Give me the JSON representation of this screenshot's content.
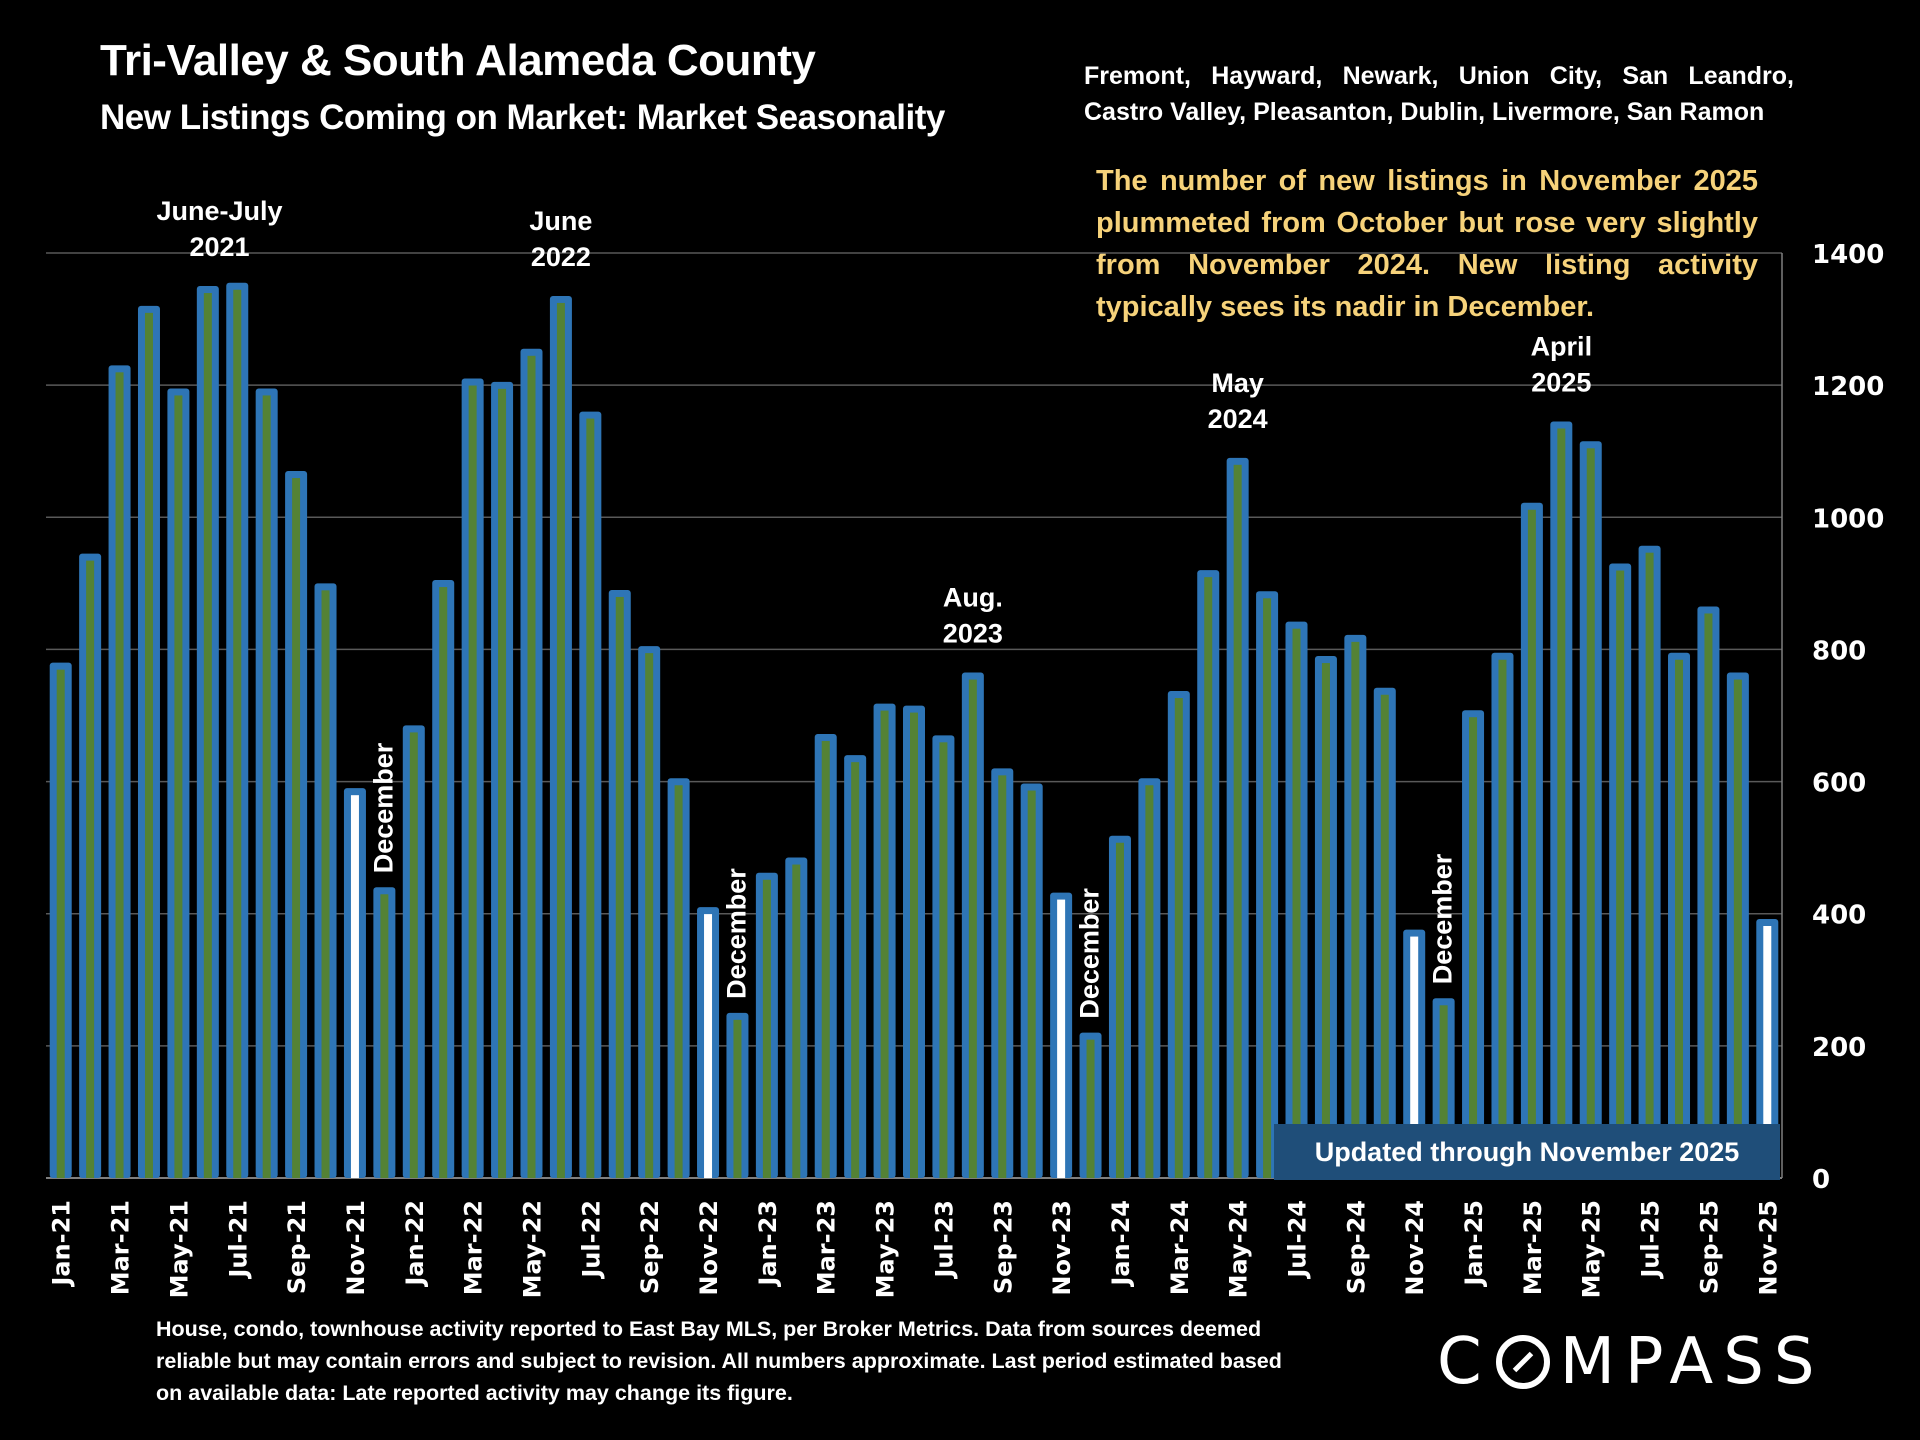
{
  "header": {
    "title": "Tri-Valley & South Alameda County",
    "subtitle": "New Listings Coming on Market: Market Seasonality",
    "cities": "Fremont, Hayward, Newark, Union City, San Leandro, Castro Valley, Pleasanton, Dublin, Livermore, San Ramon"
  },
  "commentary": "The number of new listings in November 2025 plummeted from October but rose very slightly from November 2024.  New listing activity typically sees its nadir in December.",
  "updated_badge": "Updated through November 2025",
  "footer": "House, condo, townhouse activity reported to East Bay MLS, per Broker Metrics. Data from sources deemed reliable but may contain errors and subject to revision. All numbers approximate. Last period estimated based on available data: Late reported activity may change its figure.",
  "logo": {
    "text_c": "C",
    "text_rest": "MPASS"
  },
  "colors": {
    "bar_outline": "#2e75b6",
    "bar_fill": "#548235",
    "november_fill": "#ffffff",
    "gridline": "#595959",
    "commentary": "#f6d27a",
    "badge": "#1f4e79"
  },
  "chart_data": {
    "type": "bar",
    "title": "New Listings Coming on Market: Market Seasonality",
    "xlabel": "",
    "ylabel": "",
    "ylim": [
      0,
      1400
    ],
    "yticks": [
      0,
      200,
      400,
      600,
      800,
      1000,
      1200,
      1400
    ],
    "y_axis_side": "right",
    "grid": true,
    "categories": [
      "Jan-21",
      "Feb-21",
      "Mar-21",
      "Apr-21",
      "May-21",
      "Jun-21",
      "Jul-21",
      "Aug-21",
      "Sep-21",
      "Oct-21",
      "Nov-21",
      "Dec-21",
      "Jan-22",
      "Feb-22",
      "Mar-22",
      "Apr-22",
      "May-22",
      "Jun-22",
      "Jul-22",
      "Aug-22",
      "Sep-22",
      "Oct-22",
      "Nov-22",
      "Dec-22",
      "Jan-23",
      "Feb-23",
      "Mar-23",
      "Apr-23",
      "May-23",
      "Jun-23",
      "Jul-23",
      "Aug-23",
      "Sep-23",
      "Oct-23",
      "Nov-23",
      "Dec-23",
      "Jan-24",
      "Feb-24",
      "Mar-24",
      "Apr-24",
      "May-24",
      "Jun-24",
      "Jul-24",
      "Aug-24",
      "Sep-24",
      "Oct-24",
      "Nov-24",
      "Dec-24",
      "Jan-25",
      "Feb-25",
      "Mar-25",
      "Apr-25",
      "May-25",
      "Jun-25",
      "Jul-25",
      "Aug-25",
      "Sep-25",
      "Oct-25",
      "Nov-25"
    ],
    "tick_labels_shown": [
      "Jan-21",
      "Mar-21",
      "May-21",
      "Jul-21",
      "Sep-21",
      "Nov-21",
      "Jan-22",
      "Mar-22",
      "May-22",
      "Jul-22",
      "Sep-22",
      "Nov-22",
      "Jan-23",
      "Mar-23",
      "May-23",
      "Jul-23",
      "Sep-23",
      "Nov-23",
      "Jan-24",
      "Mar-24",
      "May-24",
      "Jul-24",
      "Sep-24",
      "Nov-24",
      "Jan-25",
      "Mar-25",
      "May-25",
      "Jul-25",
      "Sep-25",
      "Nov-25"
    ],
    "series": [
      {
        "name": "New Listings",
        "values": [
          780,
          945,
          1230,
          1320,
          1195,
          1350,
          1355,
          1195,
          1070,
          900,
          590,
          440,
          685,
          905,
          1210,
          1205,
          1255,
          1335,
          1160,
          890,
          805,
          605,
          410,
          250,
          462,
          485,
          672,
          640,
          718,
          715,
          670,
          765,
          620,
          597,
          432,
          220,
          518,
          605,
          737,
          920,
          1090,
          888,
          842,
          790,
          822,
          742,
          376,
          272,
          708,
          795,
          1022,
          1145,
          1115,
          930,
          957,
          795,
          865,
          765,
          392
        ]
      }
    ],
    "highlighted_months": [
      "Nov-21",
      "Nov-22",
      "Nov-23",
      "Nov-24",
      "Nov-25"
    ],
    "annotations": [
      {
        "text": [
          "June-July",
          "2021"
        ],
        "near": "Jun-21"
      },
      {
        "text": [
          "June",
          "2022"
        ],
        "near": "Jun-22"
      },
      {
        "text": [
          "Aug.",
          "2023"
        ],
        "near": "Aug-23"
      },
      {
        "text": [
          "May",
          "2024"
        ],
        "near": "May-24"
      },
      {
        "text": [
          "April",
          "2025"
        ],
        "near": "Apr-25"
      },
      {
        "text": [
          "December"
        ],
        "near": "Dec-21",
        "rotated": true
      },
      {
        "text": [
          "December"
        ],
        "near": "Dec-22",
        "rotated": true
      },
      {
        "text": [
          "December"
        ],
        "near": "Dec-23",
        "rotated": true
      },
      {
        "text": [
          "December"
        ],
        "near": "Dec-24",
        "rotated": true
      }
    ]
  }
}
